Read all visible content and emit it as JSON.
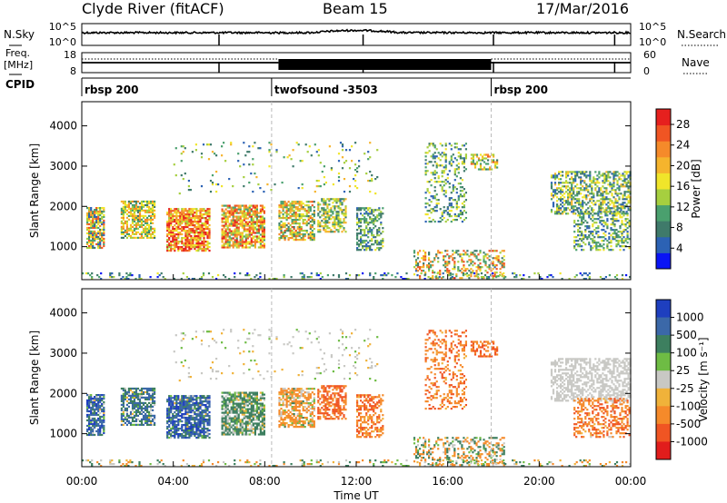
{
  "header": {
    "station": "Clyde River (fitACF)",
    "beam": "Beam 15",
    "date": "17/Mar/2016"
  },
  "status_panel": {
    "nsky_label": "N.Sky",
    "nsky_ticks": [
      "10^5",
      "10^0"
    ],
    "nsearch_label": "N.Search",
    "nsearch_ticks": [
      "10^5",
      "10^0"
    ],
    "freq_label": "Freq.",
    "freq_unit": "[MHz]",
    "freq_ticks": [
      "18",
      "8"
    ],
    "nave_label": "Nave",
    "nave_ticks": [
      "60",
      "0"
    ],
    "cpid_label": "CPID",
    "cpid_segments": [
      {
        "name": "rbsp 200",
        "start_hour": 0.0
      },
      {
        "name": "twofsound -3503",
        "start_hour": 8.3
      },
      {
        "name": "rbsp 200",
        "start_hour": 17.9
      }
    ]
  },
  "chart_data": [
    {
      "type": "heatmap",
      "title": "",
      "quantity": "Power",
      "ylabel": "Slant Range [km]",
      "ylim": [
        180,
        4600
      ],
      "yticks": [
        1000,
        2000,
        3000,
        4000
      ],
      "colorbar_label": "Power [dB]",
      "colorbar_ticks": [
        "4",
        "8",
        "12",
        "16",
        "20",
        "24",
        "28"
      ],
      "colorbar_range": [
        0,
        31
      ],
      "colorbar_colors": [
        "#0a14f5",
        "#2c62b4",
        "#3f7a6a",
        "#4aa06e",
        "#a6cf3f",
        "#f0e52a",
        "#f5b42d",
        "#f58a2a",
        "#f05523",
        "#e6201e"
      ]
    },
    {
      "type": "heatmap",
      "title": "",
      "quantity": "Velocity",
      "ylabel": "Slant Range [km]",
      "ylim": [
        180,
        4600
      ],
      "yticks": [
        1000,
        2000,
        3000,
        4000
      ],
      "colorbar_label": "Velocity [m s⁻¹]",
      "colorbar_ticks": [
        "1000",
        "500",
        "100",
        "25",
        "-25",
        "-100",
        "-500",
        "-1000"
      ],
      "colorbar_colors": [
        "#1e3fbf",
        "#3b68a8",
        "#3d7f5f",
        "#6ebc44",
        "#c8c8c4",
        "#f0b23a",
        "#f58a2a",
        "#f05523",
        "#e11d1c"
      ]
    }
  ],
  "time_axis": {
    "label": "Time UT",
    "ticks": [
      "00:00",
      "04:00",
      "08:00",
      "12:00",
      "16:00",
      "20:00",
      "00:00"
    ],
    "range_hours": [
      0,
      24
    ]
  },
  "scatter_patches": [
    {
      "t": [
        0.2,
        1.0
      ],
      "r": [
        950,
        2000
      ],
      "p": [
        4,
        28
      ],
      "v": [
        -50,
        1000
      ],
      "d": 0.75
    },
    {
      "t": [
        1.7,
        3.2
      ],
      "r": [
        1200,
        2150
      ],
      "p": [
        8,
        24
      ],
      "v": [
        -50,
        600
      ],
      "d": 0.7
    },
    {
      "t": [
        3.7,
        5.6
      ],
      "r": [
        880,
        1950
      ],
      "p": [
        14,
        31
      ],
      "v": [
        -50,
        1000
      ],
      "d": 0.8
    },
    {
      "t": [
        6.1,
        8.0
      ],
      "r": [
        960,
        2050
      ],
      "p": [
        10,
        30
      ],
      "v": [
        -60,
        300
      ],
      "d": 0.75
    },
    {
      "t": [
        8.6,
        10.2
      ],
      "r": [
        1150,
        2150
      ],
      "p": [
        8,
        26
      ],
      "v": [
        -300,
        80
      ],
      "d": 0.65
    },
    {
      "t": [
        10.3,
        11.6
      ],
      "r": [
        1350,
        2200
      ],
      "p": [
        6,
        22
      ],
      "v": [
        -600,
        -80
      ],
      "d": 0.6
    },
    {
      "t": [
        12.0,
        13.2
      ],
      "r": [
        900,
        2000
      ],
      "p": [
        4,
        16
      ],
      "v": [
        -500,
        -30
      ],
      "d": 0.5
    },
    {
      "t": [
        15.0,
        16.8
      ],
      "r": [
        1600,
        3600
      ],
      "p": [
        4,
        18
      ],
      "v": [
        -500,
        -40
      ],
      "d": 0.28
    },
    {
      "t": [
        17.0,
        18.2
      ],
      "r": [
        2900,
        3300
      ],
      "p": [
        8,
        26
      ],
      "v": [
        -600,
        -50
      ],
      "d": 0.55
    },
    {
      "t": [
        20.5,
        24.0
      ],
      "r": [
        1800,
        2900
      ],
      "p": [
        4,
        20
      ],
      "v": [
        -20,
        20
      ],
      "d": 0.5
    },
    {
      "t": [
        21.5,
        24.0
      ],
      "r": [
        900,
        1900
      ],
      "p": [
        4,
        18
      ],
      "v": [
        -500,
        -20
      ],
      "d": 0.45
    },
    {
      "t": [
        14.5,
        18.5
      ],
      "r": [
        200,
        900
      ],
      "p": [
        6,
        28
      ],
      "v": [
        -200,
        200
      ],
      "d": 0.35
    },
    {
      "t": [
        0.0,
        24.0
      ],
      "r": [
        180,
        380
      ],
      "p": [
        2,
        16
      ],
      "v": [
        -150,
        150
      ],
      "d": 0.18
    },
    {
      "t": [
        4.0,
        13.0
      ],
      "r": [
        2300,
        3600
      ],
      "p": [
        4,
        20
      ],
      "v": [
        -40,
        40
      ],
      "d": 0.05
    }
  ]
}
